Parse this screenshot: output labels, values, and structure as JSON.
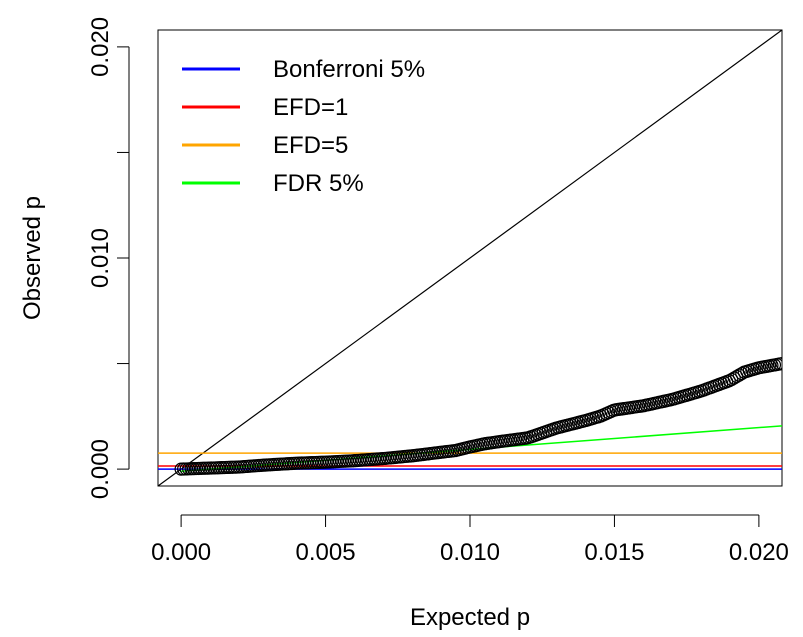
{
  "chart_data": {
    "type": "scatter",
    "title": "",
    "xlabel": "Expected p",
    "ylabel": "Observed p",
    "xlim": [
      -0.0008,
      0.0208
    ],
    "ylim": [
      -0.0008,
      0.0208
    ],
    "x_ticks": [
      0.0,
      0.005,
      0.01,
      0.015,
      0.02
    ],
    "x_tick_labels": [
      "0.000",
      "0.005",
      "0.010",
      "0.015",
      "0.020"
    ],
    "y_ticks": [
      0.0,
      0.005,
      0.01,
      0.015,
      0.02
    ],
    "y_tick_labels": [
      "0.000",
      "",
      "0.010",
      "",
      "0.020"
    ],
    "grid": false,
    "legend_position": "top-left",
    "legend": [
      {
        "label": "Bonferroni 5%",
        "color": "#0000ff"
      },
      {
        "label": "EFD=1",
        "color": "#ff0000"
      },
      {
        "label": "EFD=5",
        "color": "#ffa500"
      },
      {
        "label": "FDR 5%",
        "color": "#00ff00"
      }
    ],
    "reference_lines": {
      "diagonal": {
        "color": "#000000"
      },
      "bonferroni_y": 0.0,
      "efd1_y": 0.00015,
      "efd5_y": 0.00076,
      "fdr_line": {
        "x": [
          0.0,
          0.0208
        ],
        "y": [
          -0.0001,
          0.00205
        ],
        "color": "#00ff00"
      }
    },
    "observed_curve": {
      "x": [
        0.0,
        0.001,
        0.002,
        0.003,
        0.004,
        0.005,
        0.006,
        0.007,
        0.008,
        0.009,
        0.0095,
        0.01,
        0.0105,
        0.011,
        0.012,
        0.013,
        0.014,
        0.0145,
        0.015,
        0.016,
        0.017,
        0.018,
        0.019,
        0.0195,
        0.02,
        0.0208
      ],
      "y": [
        0.0,
        5e-05,
        0.0001,
        0.0002,
        0.00028,
        0.00033,
        0.0004,
        0.0005,
        0.00063,
        0.0008,
        0.00088,
        0.00105,
        0.0012,
        0.0013,
        0.00148,
        0.00195,
        0.0023,
        0.0025,
        0.0028,
        0.003,
        0.0033,
        0.0037,
        0.0042,
        0.0046,
        0.0048,
        0.005
      ]
    }
  }
}
